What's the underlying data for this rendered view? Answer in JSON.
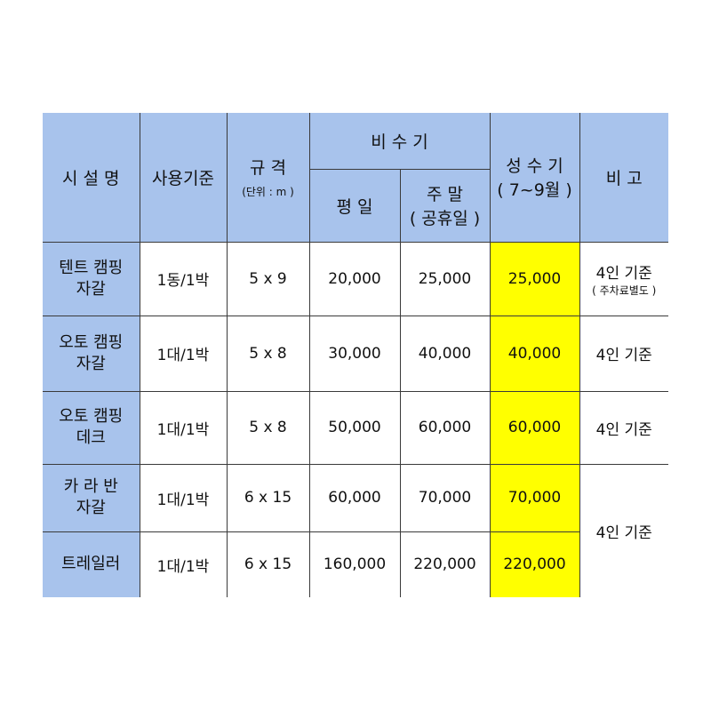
{
  "headers": {
    "facility": "시 설 명",
    "usage": "사용기준",
    "size": "규 격",
    "size_unit": "(단위 : m )",
    "off_season": "비 수 기",
    "weekday": "평 일",
    "weekend": "주 말",
    "weekend_sub": "( 공휴일 )",
    "peak": "성 수 기",
    "peak_sub": "( 7~9월 )",
    "note": "비 고"
  },
  "rows": [
    {
      "facility": [
        "텐트 캠핑",
        "자갈"
      ],
      "usage": "1동/1박",
      "size": "5 x 9",
      "weekday": "20,000",
      "weekend": "25,000",
      "peak": "25,000",
      "note": "4인 기준",
      "note_sub": "( 주차료별도 )"
    },
    {
      "facility": [
        "오토 캠핑",
        "자갈"
      ],
      "usage": "1대/1박",
      "size": "5 x 8",
      "weekday": "30,000",
      "weekend": "40,000",
      "peak": "40,000",
      "note": "4인 기준"
    },
    {
      "facility": [
        "오토 캠핑",
        "데크"
      ],
      "usage": "1대/1박",
      "size": "5 x 8",
      "weekday": "50,000",
      "weekend": "60,000",
      "peak": "60,000",
      "note": "4인 기준"
    },
    {
      "facility": [
        "카 라 반",
        "자갈"
      ],
      "usage": "1대/1박",
      "size": "6 x 15",
      "weekday": "60,000",
      "weekend": "70,000",
      "peak": "70,000",
      "note": "4인 기준"
    },
    {
      "facility": [
        "트레일러"
      ],
      "usage": "1대/1박",
      "size": "6 x 15",
      "weekday": "160,000",
      "weekend": "220,000",
      "peak": "220,000"
    }
  ],
  "colors": {
    "header_bg": "#a8c3ec",
    "peak_bg": "#ffff00"
  }
}
